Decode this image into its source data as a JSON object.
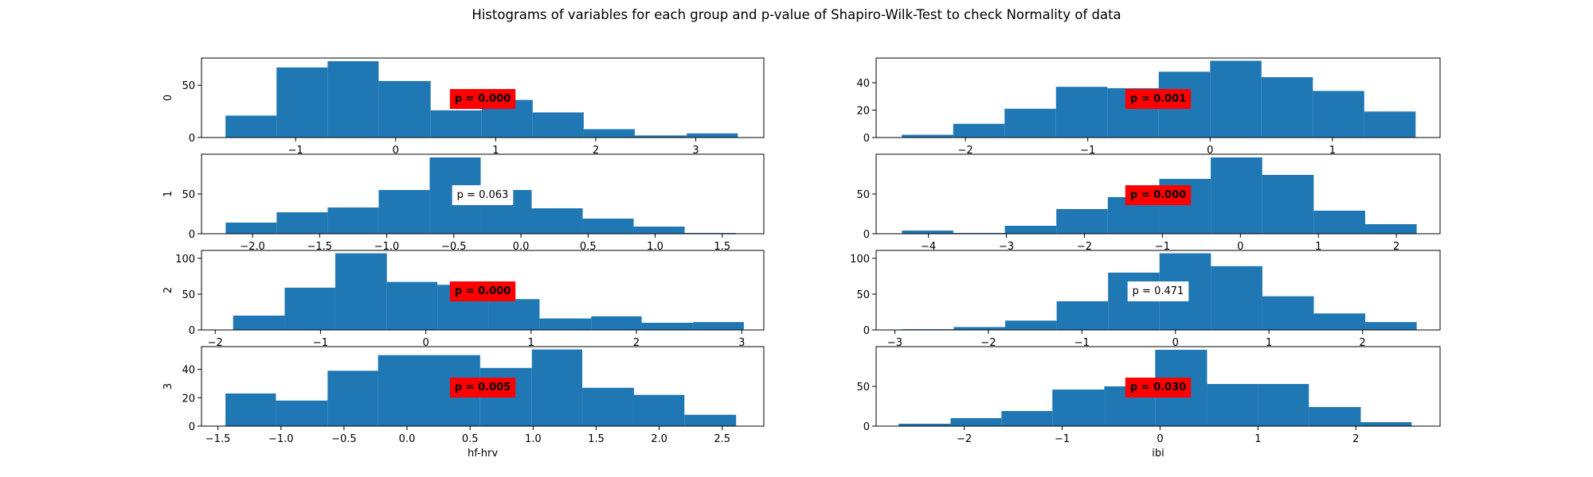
{
  "title": "Histograms of variables for each group and p-value of Shapiro-Wilk-Test to check Normality of data",
  "chart_data": [
    {
      "type": "histogram",
      "ylabel": "0",
      "color": "#1f77b4",
      "bins": [
        -1.7,
        -1.19,
        -0.68,
        -0.17,
        0.35,
        0.86,
        1.37,
        1.88,
        2.39,
        2.91,
        3.42
      ],
      "counts": [
        21,
        67,
        73,
        54,
        26,
        36,
        24,
        8,
        2,
        4
      ],
      "xlim": [
        -1.94,
        3.68
      ],
      "ylim": [
        0,
        76
      ],
      "xticks": [
        {
          "value": -1,
          "label": "−1"
        },
        0,
        1,
        2,
        3
      ],
      "yticks": [
        0,
        50
      ],
      "annotation": "p = 0.000",
      "annotation_color": "#ff0000",
      "annotation_bold": true
    },
    {
      "type": "histogram",
      "color": "#1f77b4",
      "bins": [
        -2.52,
        -2.1,
        -1.68,
        -1.26,
        -0.84,
        -0.42,
        0.0,
        0.42,
        0.84,
        1.26,
        1.68
      ],
      "counts": [
        2,
        10,
        21,
        37,
        36,
        48,
        56,
        44,
        34,
        19
      ],
      "xlim": [
        -2.73,
        1.88
      ],
      "ylim": [
        0,
        58
      ],
      "xticks": [
        {
          "value": -2,
          "label": "−2"
        },
        {
          "value": -1,
          "label": "−1"
        },
        0,
        1
      ],
      "yticks": [
        0,
        20,
        40
      ],
      "annotation": "p = 0.001",
      "annotation_color": "#ff0000",
      "annotation_bold": true
    },
    {
      "type": "histogram",
      "ylabel": "1",
      "color": "#1f77b4",
      "bins": [
        -2.2,
        -1.82,
        -1.44,
        -1.06,
        -0.68,
        -0.3,
        0.08,
        0.46,
        0.84,
        1.22,
        1.6
      ],
      "counts": [
        14,
        27,
        33,
        55,
        96,
        55,
        32,
        19,
        9,
        1
      ],
      "xlim": [
        -2.38,
        1.81
      ],
      "ylim": [
        0,
        100
      ],
      "xticks": [
        {
          "value": -2,
          "label": "−2.0"
        },
        {
          "value": -1.5,
          "label": "−1.5"
        },
        {
          "value": -1,
          "label": "−1.0"
        },
        {
          "value": -0.5,
          "label": "−0.5"
        },
        {
          "value": 0,
          "label": "0.0"
        },
        0.5,
        {
          "value": 1,
          "label": "1.0"
        },
        1.5
      ],
      "yticks": [
        0,
        50
      ],
      "annotation": "p = 0.063",
      "annotation_color": "#ffffff",
      "annotation_bold": false
    },
    {
      "type": "histogram",
      "color": "#1f77b4",
      "bins": [
        -4.34,
        -3.68,
        -3.02,
        -2.36,
        -1.7,
        -1.04,
        -0.38,
        0.28,
        0.94,
        1.6,
        2.26
      ],
      "counts": [
        4,
        1,
        10,
        31,
        46,
        69,
        96,
        74,
        29,
        12
      ],
      "xlim": [
        -4.67,
        2.56
      ],
      "ylim": [
        0,
        100
      ],
      "xticks": [
        {
          "value": -4,
          "label": "−4"
        },
        {
          "value": -3,
          "label": "−3"
        },
        {
          "value": -2,
          "label": "−2"
        },
        {
          "value": -1,
          "label": "−1"
        },
        0,
        1,
        2
      ],
      "yticks": [
        0,
        50
      ],
      "annotation": "p = 0.000",
      "annotation_color": "#ff0000",
      "annotation_bold": true
    },
    {
      "type": "histogram",
      "ylabel": "2",
      "color": "#1f77b4",
      "bins": [
        -1.83,
        -1.34,
        -0.86,
        -0.37,
        0.11,
        0.6,
        1.08,
        1.57,
        2.05,
        2.54,
        3.02
      ],
      "counts": [
        20,
        59,
        107,
        67,
        63,
        43,
        16,
        19,
        10,
        11
      ],
      "xlim": [
        -2.13,
        3.21
      ],
      "ylim": [
        0,
        111
      ],
      "xticks": [
        {
          "value": -2,
          "label": "−2"
        },
        {
          "value": -1,
          "label": "−1"
        },
        0,
        1,
        2,
        3
      ],
      "yticks": [
        0,
        50,
        100
      ],
      "annotation": "p = 0.000",
      "annotation_color": "#ff0000",
      "annotation_bold": true
    },
    {
      "type": "histogram",
      "color": "#1f77b4",
      "bins": [
        -2.92,
        -2.37,
        -1.82,
        -1.27,
        -0.72,
        -0.17,
        0.38,
        0.93,
        1.48,
        2.03,
        2.58
      ],
      "counts": [
        1,
        4,
        13,
        40,
        80,
        107,
        89,
        47,
        23,
        11
      ],
      "xlim": [
        -3.2,
        2.83
      ],
      "ylim": [
        0,
        111
      ],
      "xticks": [
        {
          "value": -3,
          "label": "−3"
        },
        {
          "value": -2,
          "label": "−2"
        },
        {
          "value": -1,
          "label": "−1"
        },
        0,
        1,
        2
      ],
      "yticks": [
        0,
        50,
        100
      ],
      "annotation": "p = 0.471",
      "annotation_color": "#ffffff",
      "annotation_bold": false
    },
    {
      "type": "histogram",
      "ylabel": "3",
      "xlabel": "hf-hrv",
      "color": "#1f77b4",
      "bins": [
        -1.44,
        -1.04,
        -0.63,
        -0.23,
        0.18,
        0.58,
        0.99,
        1.39,
        1.8,
        2.2,
        2.61
      ],
      "counts": [
        23,
        18,
        39,
        50,
        50,
        41,
        54,
        27,
        22,
        8
      ],
      "xlim": [
        -1.63,
        2.83
      ],
      "ylim": [
        0,
        56
      ],
      "xticks": [
        {
          "value": -1.5,
          "label": "−1.5"
        },
        {
          "value": -1,
          "label": "−1.0"
        },
        {
          "value": -0.5,
          "label": "−0.5"
        },
        {
          "value": 0,
          "label": "0.0"
        },
        0.5,
        {
          "value": 1,
          "label": "1.0"
        },
        1.5,
        {
          "value": 2,
          "label": "2.0"
        },
        2.5
      ],
      "yticks": [
        0,
        20,
        40
      ],
      "annotation": "p = 0.005",
      "annotation_color": "#ff0000",
      "annotation_bold": true
    },
    {
      "type": "histogram",
      "xlabel": "ibi",
      "color": "#1f77b4",
      "bins": [
        -2.67,
        -2.14,
        -1.62,
        -1.1,
        -0.57,
        -0.05,
        0.48,
        1.0,
        1.52,
        2.05,
        2.57
      ],
      "counts": [
        3,
        10,
        19,
        46,
        50,
        96,
        53,
        53,
        24,
        5
      ],
      "xlim": [
        -2.9,
        2.86
      ],
      "ylim": [
        0,
        100
      ],
      "xticks": [
        {
          "value": -2,
          "label": "−2"
        },
        {
          "value": -1,
          "label": "−1"
        },
        0,
        1,
        2
      ],
      "yticks": [
        0,
        50
      ],
      "annotation": "p = 0.030",
      "annotation_color": "#ff0000",
      "annotation_bold": true
    }
  ]
}
